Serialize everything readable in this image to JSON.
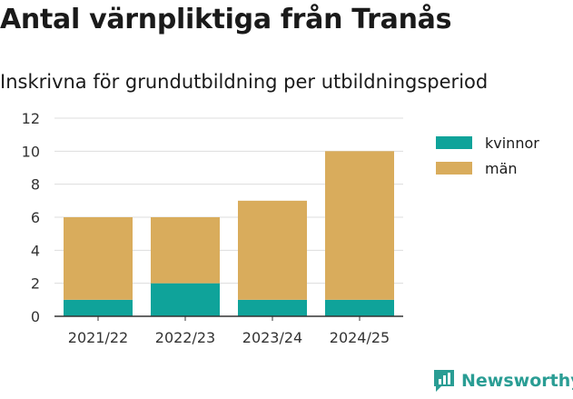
{
  "title": "Antal värnpliktiga från Tranås",
  "subtitle": "Inskrivna för grundutbildning per utbildningsperiod",
  "brand": "Newsworthy",
  "colors": {
    "kvinnor": "#0fa39a",
    "man": "#d9ac5c",
    "brand": "#2a9d94"
  },
  "chart_data": {
    "type": "bar",
    "stacked": true,
    "title": "Antal värnpliktiga från Tranås",
    "subtitle": "Inskrivna för grundutbildning per utbildningsperiod",
    "categories": [
      "2021/22",
      "2022/23",
      "2023/24",
      "2024/25"
    ],
    "series": [
      {
        "name": "kvinnor",
        "values": [
          1,
          2,
          1,
          1
        ]
      },
      {
        "name": "män",
        "values": [
          5,
          4,
          6,
          9
        ]
      }
    ],
    "ylim": [
      0,
      12
    ],
    "yticks": [
      "0",
      "2",
      "4",
      "6",
      "8",
      "10",
      "12"
    ],
    "grid": true,
    "legend": "right"
  }
}
